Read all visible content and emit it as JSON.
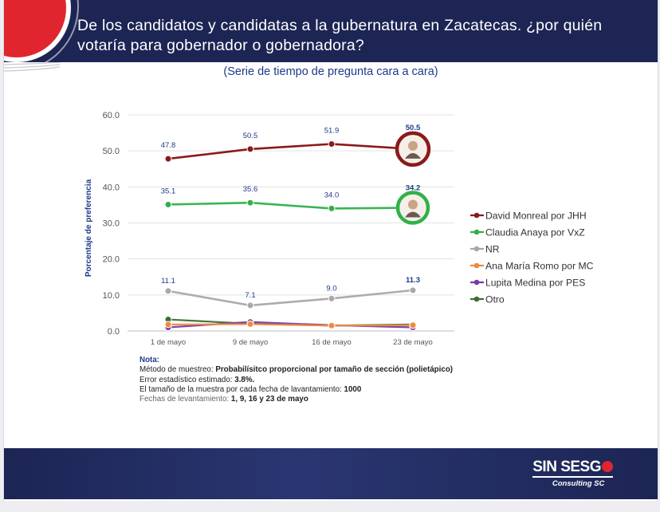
{
  "header": {
    "title": "De los candidatos y candidatas a la gubernatura en Zacatecas. ¿por quién votaría para gobernador o gobernadora?"
  },
  "subtitle": "(Serie de tiempo de pregunta cara a cara)",
  "chart_data": {
    "type": "line",
    "ylabel": "Porcentaje de preferencia",
    "ylim": [
      0,
      60
    ],
    "yticks": [
      "0.0",
      "10.0",
      "20.0",
      "30.0",
      "40.0",
      "50.0",
      "60.0"
    ],
    "categories": [
      "1 de mayo",
      "9 de mayo",
      "16 de mayo",
      "23 de mayo"
    ],
    "grid": true,
    "legend_position": "right",
    "series": [
      {
        "name": "David Monreal por JHH",
        "color": "#8b1a1a",
        "values": [
          47.8,
          50.5,
          51.9,
          50.5
        ],
        "labels": [
          "47.8",
          "50.5",
          "51.9",
          "50.5"
        ]
      },
      {
        "name": "Claudia Anaya por VxZ",
        "color": "#2fb14a",
        "values": [
          35.1,
          35.6,
          34.0,
          34.2
        ],
        "labels": [
          "35.1",
          "35.6",
          "34.0",
          "34.2"
        ]
      },
      {
        "name": "NR",
        "color": "#a8a8a8",
        "values": [
          11.1,
          7.1,
          9.0,
          11.3
        ],
        "labels": [
          "11.1",
          "7.1",
          "9.0",
          "11.3"
        ]
      },
      {
        "name": "Ana María Romo por MC",
        "color": "#f08a3c",
        "values": [
          1.8,
          1.9,
          1.5,
          1.6
        ],
        "labels": []
      },
      {
        "name": "Lupita Medina por PES",
        "color": "#7a3aa8",
        "values": [
          1.0,
          2.5,
          1.6,
          1.0
        ],
        "labels": []
      },
      {
        "name": "Otro",
        "color": "#3c6e34",
        "values": [
          3.2,
          2.0,
          1.5,
          1.8
        ],
        "labels": []
      }
    ],
    "highlight_colors": {
      "monreal": "#8b1a1a",
      "anaya": "#2fb14a"
    }
  },
  "notes": {
    "title": "Nota:",
    "line1_label": "Método de muestreo: ",
    "line1_value": "Probabilísitco proporcional por tamaño de sección (polietápico)",
    "line2_label": "Error estadístico estimado: ",
    "line2_value": "3.8%.",
    "line3_label": "El tamaño de la muestra por cada fecha de lavantamiento: ",
    "line3_value": "1000",
    "line4_label": "Fechas de levantamiento: ",
    "line4_value": "1, 9, 16 y 23 de mayo"
  },
  "brand": {
    "name": "SIN SESG",
    "sub": "Consulting SC",
    "color": "#e1252f"
  }
}
